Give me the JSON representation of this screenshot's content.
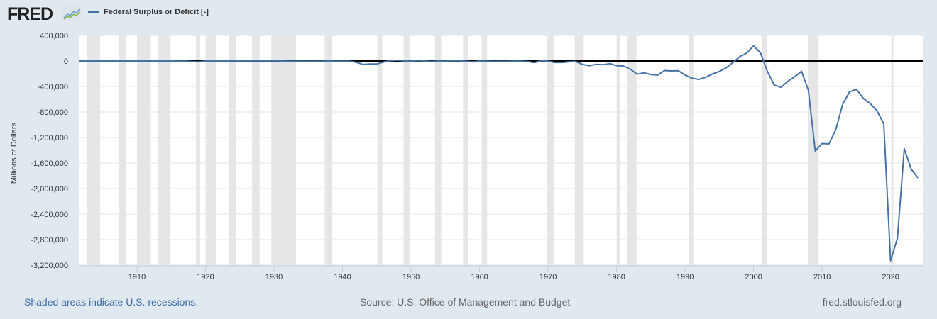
{
  "header": {
    "logo_text": "FRED",
    "legend_label": "Federal Surplus or Deficit [-]"
  },
  "colors": {
    "series": "#4572a7",
    "recession": "#e6e6e6",
    "background": "#e1e9f0",
    "plot": "#ffffff",
    "zero_line": "#000000"
  },
  "footer": {
    "recessions_note": "Shaded areas indicate U.S. recessions.",
    "source": "Source: U.S. Office of Management and Budget",
    "site": "fred.stlouisfed.org"
  },
  "chart_data": {
    "type": "line",
    "title": "Federal Surplus or Deficit [-]",
    "xlabel": "",
    "ylabel": "Millions of Dollars",
    "xlim": [
      1901.5,
      2024.7
    ],
    "ylim": [
      -3200000,
      400000
    ],
    "yticks": [
      400000,
      0,
      -400000,
      -800000,
      -1200000,
      -1600000,
      -2000000,
      -2400000,
      -2800000,
      -3200000
    ],
    "ytick_labels": [
      "400,000",
      "0",
      "-400,000",
      "-800,000",
      "-1,200,000",
      "-1,600,000",
      "-2,000,000",
      "-2,400,000",
      "-2,800,000",
      "-3,200,000"
    ],
    "xticks": [
      1910,
      1920,
      1930,
      1940,
      1950,
      1960,
      1970,
      1980,
      1990,
      2000,
      2010,
      2020
    ],
    "xtick_labels": [
      "1910",
      "1920",
      "1930",
      "1940",
      "1950",
      "1960",
      "1970",
      "1980",
      "1990",
      "2000",
      "2010",
      "2020"
    ],
    "grid": true,
    "recessions": [
      [
        1902.7,
        1904.6
      ],
      [
        1907.4,
        1908.4
      ],
      [
        1910.0,
        1912.0
      ],
      [
        1913.0,
        1914.9
      ],
      [
        1918.6,
        1919.2
      ],
      [
        1920.0,
        1921.5
      ],
      [
        1923.4,
        1924.5
      ],
      [
        1926.8,
        1927.9
      ],
      [
        1929.6,
        1933.2
      ],
      [
        1937.4,
        1938.5
      ],
      [
        1945.1,
        1945.8
      ],
      [
        1948.9,
        1949.8
      ],
      [
        1953.5,
        1954.4
      ],
      [
        1957.6,
        1958.3
      ],
      [
        1960.3,
        1961.1
      ],
      [
        1969.9,
        1970.9
      ],
      [
        1973.9,
        1975.2
      ],
      [
        1980.0,
        1980.5
      ],
      [
        1981.5,
        1982.9
      ],
      [
        1990.6,
        1991.2
      ],
      [
        2001.2,
        2001.9
      ],
      [
        2007.9,
        2009.5
      ],
      [
        2020.1,
        2020.4
      ]
    ],
    "series": [
      {
        "name": "Federal Surplus or Deficit [-]",
        "x": [
          1901,
          1905,
          1910,
          1915,
          1917,
          1918,
          1919,
          1920,
          1921,
          1925,
          1930,
          1931,
          1932,
          1933,
          1934,
          1935,
          1936,
          1937,
          1938,
          1939,
          1940,
          1941,
          1942,
          1943,
          1944,
          1945,
          1946,
          1947,
          1948,
          1949,
          1950,
          1951,
          1952,
          1953,
          1954,
          1955,
          1956,
          1957,
          1958,
          1959,
          1960,
          1961,
          1962,
          1963,
          1964,
          1965,
          1966,
          1967,
          1968,
          1969,
          1970,
          1971,
          1972,
          1973,
          1974,
          1975,
          1976,
          1977,
          1978,
          1979,
          1980,
          1981,
          1982,
          1983,
          1984,
          1985,
          1986,
          1987,
          1988,
          1989,
          1990,
          1991,
          1992,
          1993,
          1994,
          1995,
          1996,
          1997,
          1998,
          1999,
          2000,
          2001,
          2002,
          2003,
          2004,
          2005,
          2006,
          2007,
          2008,
          2009,
          2010,
          2011,
          2012,
          2013,
          2014,
          2015,
          2016,
          2017,
          2018,
          2019,
          2020,
          2021,
          2022,
          2023,
          2024
        ],
        "values": [
          63,
          0,
          -18,
          -63,
          -853,
          -9032,
          -13363,
          291,
          509,
          717,
          738,
          -462,
          -2735,
          -2602,
          -3586,
          -2803,
          -4304,
          -2193,
          -89,
          -2846,
          -2920,
          -4941,
          -20503,
          -54554,
          -47557,
          -47553,
          -15936,
          4018,
          11796,
          580,
          -3119,
          6102,
          -1519,
          -6493,
          -1154,
          -2993,
          3947,
          3412,
          -2769,
          -12849,
          301,
          -3335,
          -7146,
          -4756,
          -5915,
          -1411,
          -3698,
          -8643,
          -25161,
          3242,
          -2842,
          -23033,
          -23373,
          -14908,
          -6135,
          -53242,
          -73732,
          -53659,
          -59185,
          -40726,
          -73830,
          -78968,
          -127977,
          -207802,
          -185367,
          -212308,
          -221227,
          -149730,
          -155178,
          -152639,
          -221036,
          -269238,
          -290321,
          -255051,
          -203186,
          -163952,
          -107431,
          -21884,
          69270,
          125610,
          236241,
          128236,
          -157758,
          -377585,
          -412727,
          -318346,
          -248181,
          -160701,
          -458553,
          -1412688,
          -1294373,
          -1299599,
          -1076573,
          -679775,
          -484602,
          -442004,
          -584651,
          -665446,
          -779137,
          -983594,
          -3131917,
          -2775306,
          -1375905,
          -1694000,
          -1833000
        ]
      }
    ]
  }
}
